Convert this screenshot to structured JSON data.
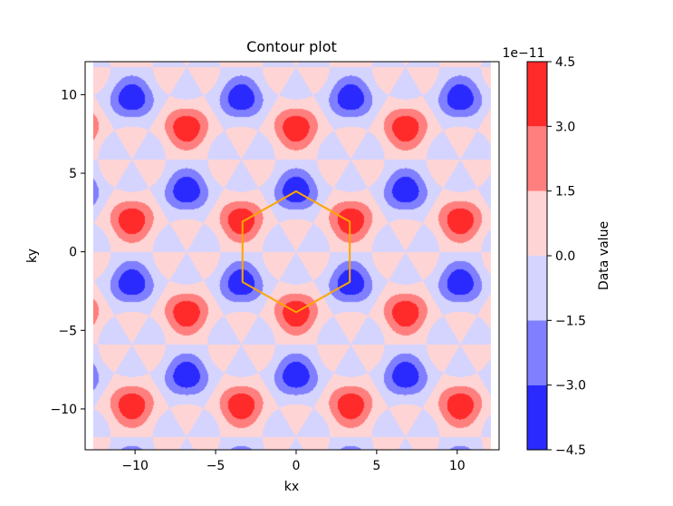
{
  "chart_data": {
    "type": "heatmap",
    "subtype": "filled-contour",
    "title": "Contour plot",
    "xlabel": "kx",
    "ylabel": "ky",
    "xlim": [
      -13.1,
      12.6
    ],
    "ylim": [
      -12.6,
      12.1
    ],
    "data_xrange": [
      -12.6,
      12.1
    ],
    "data_yrange": [
      -12.6,
      12.1
    ],
    "xticks": [
      -10,
      -5,
      0,
      5,
      10
    ],
    "yticks": [
      -10,
      -5,
      0,
      5,
      10
    ],
    "xtick_labels": [
      "−10",
      "−5",
      "0",
      "5",
      "10"
    ],
    "ytick_labels": [
      "−10",
      "−5",
      "0",
      "5",
      "10"
    ],
    "pattern": "threefold-symmetric lobes on a hexagonal (triangular) lattice; spacing ≈ 6.8",
    "colorbar": {
      "label": "Data value",
      "scale_label": "1e−11",
      "levels": [
        -4.5,
        -3.0,
        -1.5,
        0.0,
        1.5,
        3.0,
        4.5
      ],
      "level_labels": [
        "−4.5",
        "−3.0",
        "−1.5",
        "0.0",
        "1.5",
        "3.0",
        "4.5"
      ],
      "colormap": "bwr",
      "band_colors": [
        "#2a2aff",
        "#7f7fff",
        "#d4d4ff",
        "#ffd4d4",
        "#ff7f7f",
        "#ff2a2a"
      ]
    },
    "overlay": {
      "shape": "hexagon",
      "color": "#ffa500",
      "vertices": [
        [
          0,
          3.85
        ],
        [
          3.33,
          1.92
        ],
        [
          3.33,
          -1.92
        ],
        [
          0,
          -3.85
        ],
        [
          -3.33,
          -1.92
        ],
        [
          -3.33,
          1.92
        ]
      ]
    }
  }
}
